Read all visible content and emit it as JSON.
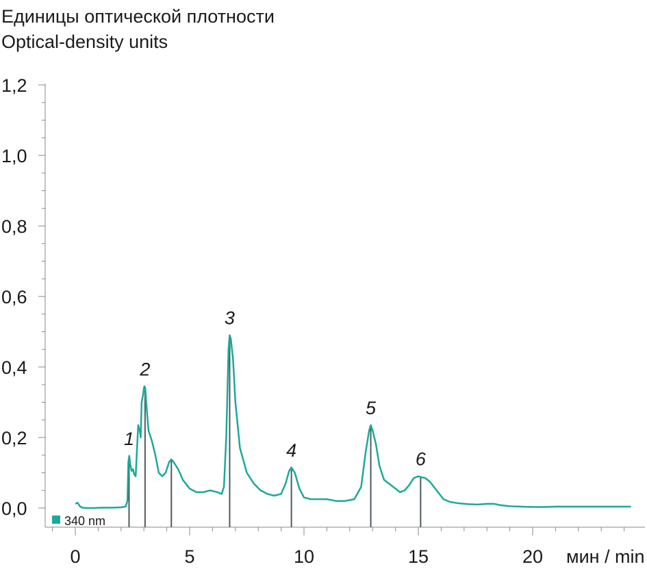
{
  "chart_data": {
    "type": "line",
    "ylabel_ru": "Единицы оптической плотности",
    "ylabel_en": "Optical-density units",
    "x_unit": "мин / min",
    "xlim": [
      -1,
      24.8
    ],
    "ylim": [
      -0.055,
      1.2
    ],
    "x_ticks": [
      0,
      5,
      10,
      15,
      20
    ],
    "x_tick_labels": [
      "0",
      "5",
      "10",
      "15",
      "20"
    ],
    "y_ticks": [
      0.0,
      0.2,
      0.4,
      0.6,
      0.8,
      1.0,
      1.2
    ],
    "y_tick_labels": [
      "0,0",
      "0,2",
      "0,4",
      "0,6",
      "0,8",
      "1,0",
      "1,2"
    ],
    "y_minor_step": 0.05,
    "legend": "340 nm",
    "legend_position": "bottom-left",
    "line_color": "#1aa99a",
    "marker_color": "#4f5a5f",
    "series": [
      {
        "name": "340 nm",
        "x": [
          0.0,
          0.1,
          0.2,
          0.3,
          0.5,
          0.8,
          1.2,
          1.6,
          2.0,
          2.2,
          2.28,
          2.32,
          2.36,
          2.4,
          2.46,
          2.52,
          2.58,
          2.64,
          2.7,
          2.75,
          2.82,
          2.86,
          2.9,
          2.96,
          3.0,
          3.02,
          3.06,
          3.1,
          3.2,
          3.35,
          3.5,
          3.65,
          3.8,
          3.95,
          4.1,
          4.2,
          4.3,
          4.5,
          4.7,
          5.0,
          5.3,
          5.6,
          5.9,
          6.2,
          6.4,
          6.5,
          6.6,
          6.7,
          6.75,
          6.8,
          6.9,
          7.0,
          7.2,
          7.5,
          7.8,
          8.1,
          8.4,
          8.7,
          9.0,
          9.2,
          9.35,
          9.45,
          9.6,
          9.8,
          10.0,
          10.3,
          10.6,
          11.0,
          11.4,
          11.8,
          12.2,
          12.5,
          12.7,
          12.85,
          12.92,
          13.0,
          13.15,
          13.3,
          13.5,
          13.8,
          14.0,
          14.2,
          14.4,
          14.6,
          14.8,
          15.0,
          15.1,
          15.3,
          15.5,
          15.8,
          16.1,
          16.4,
          16.8,
          17.2,
          17.6,
          18.0,
          18.3,
          18.6,
          19.0,
          19.5,
          20.0,
          20.5,
          21.0,
          22.0,
          23.0,
          24.0,
          24.3
        ],
        "values": [
          0.012,
          0.015,
          0.005,
          0.001,
          0.0,
          0.0,
          0.001,
          0.001,
          0.002,
          0.004,
          0.02,
          0.13,
          0.148,
          0.125,
          0.105,
          0.11,
          0.095,
          0.09,
          0.17,
          0.235,
          0.22,
          0.2,
          0.3,
          0.32,
          0.34,
          0.345,
          0.34,
          0.3,
          0.22,
          0.19,
          0.15,
          0.1,
          0.09,
          0.1,
          0.13,
          0.138,
          0.13,
          0.11,
          0.08,
          0.055,
          0.045,
          0.045,
          0.05,
          0.045,
          0.04,
          0.06,
          0.2,
          0.45,
          0.49,
          0.48,
          0.42,
          0.3,
          0.17,
          0.1,
          0.07,
          0.05,
          0.04,
          0.035,
          0.04,
          0.07,
          0.105,
          0.115,
          0.1,
          0.055,
          0.03,
          0.025,
          0.025,
          0.025,
          0.02,
          0.02,
          0.025,
          0.06,
          0.16,
          0.22,
          0.235,
          0.22,
          0.18,
          0.12,
          0.08,
          0.065,
          0.055,
          0.045,
          0.05,
          0.065,
          0.085,
          0.09,
          0.088,
          0.085,
          0.075,
          0.05,
          0.025,
          0.017,
          0.013,
          0.011,
          0.01,
          0.012,
          0.012,
          0.008,
          0.005,
          0.004,
          0.003,
          0.003,
          0.004,
          0.004,
          0.004,
          0.004,
          0.004
        ]
      }
    ],
    "peaks": [
      {
        "label": "1",
        "x": 2.35,
        "y": 0.148
      },
      {
        "label": "2",
        "x": 3.05,
        "y": 0.345
      },
      {
        "label": "",
        "x": 4.2,
        "y": 0.138
      },
      {
        "label": "3",
        "x": 6.75,
        "y": 0.49
      },
      {
        "label": "4",
        "x": 9.45,
        "y": 0.115
      },
      {
        "label": "5",
        "x": 12.92,
        "y": 0.235
      },
      {
        "label": "6",
        "x": 15.1,
        "y": 0.09
      }
    ]
  }
}
